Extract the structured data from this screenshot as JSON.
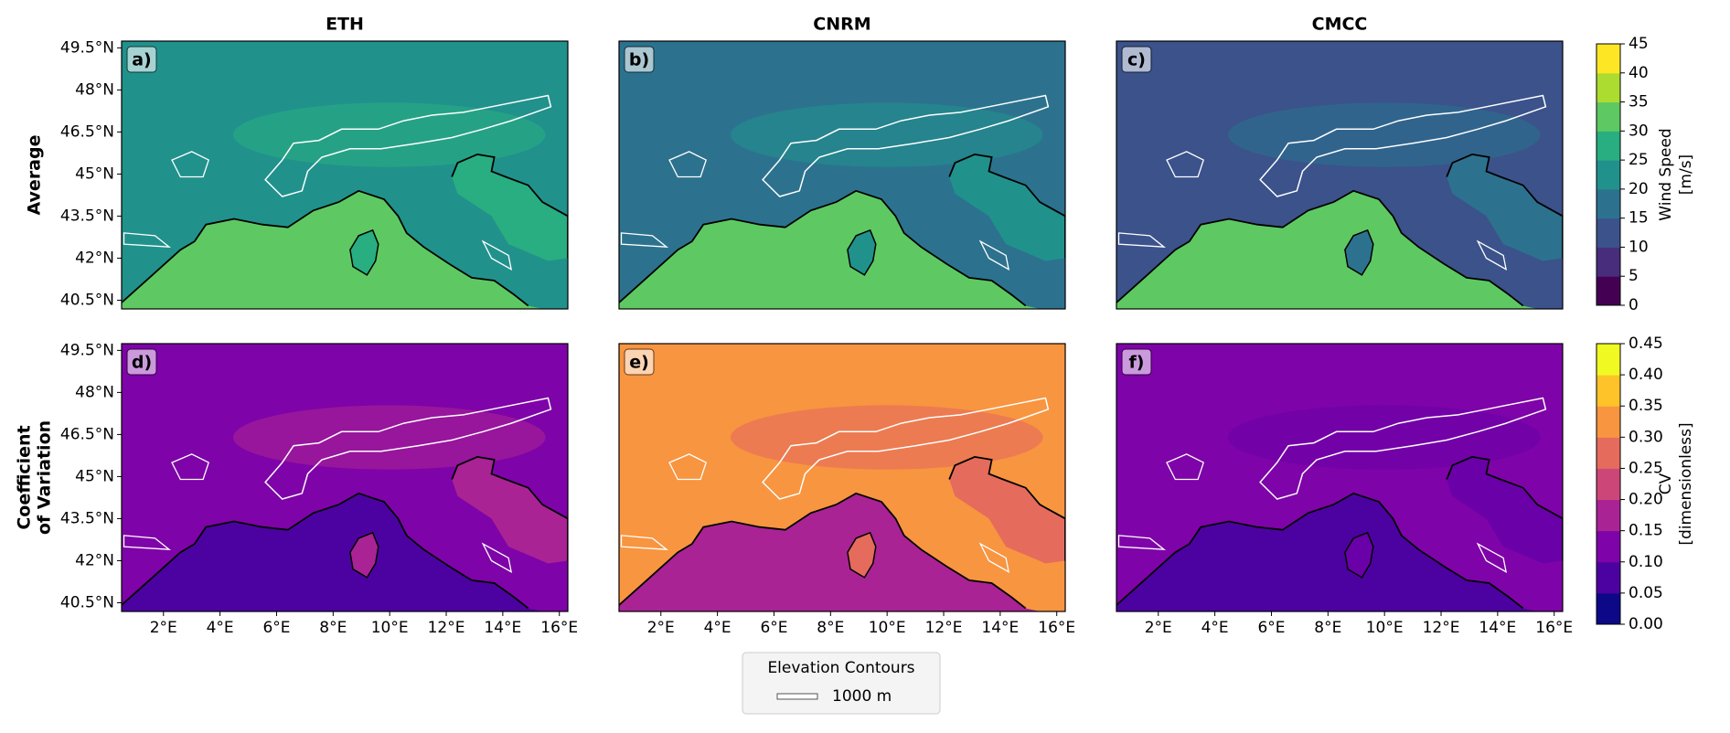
{
  "columns": [
    "ETH",
    "CNRM",
    "CMCC"
  ],
  "rows": [
    {
      "label": [
        "Average"
      ]
    },
    {
      "label": [
        "Coefficient",
        "of Variation"
      ]
    }
  ],
  "panels": [
    {
      "label": "a)",
      "land": "#21918c",
      "sea": "#5ec962",
      "accent": "#28ae80"
    },
    {
      "label": "b)",
      "land": "#2c728e",
      "sea": "#5ec962",
      "accent": "#21918c"
    },
    {
      "label": "c)",
      "land": "#3b528b",
      "sea": "#5ec962",
      "accent": "#2c728e"
    },
    {
      "label": "d)",
      "land": "#7e03a8",
      "sea": "#4c02a1",
      "accent": "#a92395"
    },
    {
      "label": "e)",
      "land": "#f89540",
      "sea": "#a92395",
      "accent": "#e56b5d"
    },
    {
      "label": "f)",
      "land": "#7e03a8",
      "sea": "#4c02a1",
      "accent": "#6a00a8"
    }
  ],
  "map": {
    "xlim": [
      0.52,
      16.3
    ],
    "ylim": [
      40.19,
      49.74
    ],
    "xticks": [
      {
        "value": 2,
        "label": "2°E"
      },
      {
        "value": 4,
        "label": "4°E"
      },
      {
        "value": 6,
        "label": "6°E"
      },
      {
        "value": 8,
        "label": "8°E"
      },
      {
        "value": 10,
        "label": "10°E"
      },
      {
        "value": 12,
        "label": "12°E"
      },
      {
        "value": 14,
        "label": "14°E"
      },
      {
        "value": 16,
        "label": "16°E"
      }
    ],
    "yticks": [
      {
        "value": 40.5,
        "label": "40.5°N"
      },
      {
        "value": 42,
        "label": "42°N"
      },
      {
        "value": 43.5,
        "label": "43.5°N"
      },
      {
        "value": 45,
        "label": "45°N"
      },
      {
        "value": 46.5,
        "label": "46.5°N"
      },
      {
        "value": 48,
        "label": "48°N"
      },
      {
        "value": 49.5,
        "label": "49.5°N"
      }
    ]
  },
  "colorbars": [
    {
      "label": [
        "Wind Speed",
        "[m/s]"
      ],
      "lim": [
        0,
        45
      ],
      "ticks": [
        0,
        5,
        10,
        15,
        20,
        25,
        30,
        35,
        40,
        45
      ],
      "colors": [
        "#440154",
        "#472d7b",
        "#3b528b",
        "#2c728e",
        "#21918c",
        "#28ae80",
        "#5ec962",
        "#addc30",
        "#fde725"
      ]
    },
    {
      "label": [
        "CV",
        "[dimensionless]"
      ],
      "lim": [
        0,
        0.45
      ],
      "ticks": [
        {
          "value": 0,
          "label": "0.00"
        },
        0.05,
        {
          "value": 0.1,
          "label": "0.10"
        },
        0.15,
        {
          "value": 0.2,
          "label": "0.20"
        },
        0.25,
        {
          "value": 0.3,
          "label": "0.30"
        },
        0.35,
        {
          "value": 0.4,
          "label": "0.40"
        },
        0.45
      ],
      "colors": [
        "#0d0887",
        "#4c02a1",
        "#7e03a8",
        "#a92395",
        "#cc4778",
        "#e56b5d",
        "#f89540",
        "#fdc328",
        "#f0f921"
      ]
    }
  ],
  "legend": {
    "title": "Elevation Contours",
    "entries": [
      "1000 m"
    ]
  }
}
